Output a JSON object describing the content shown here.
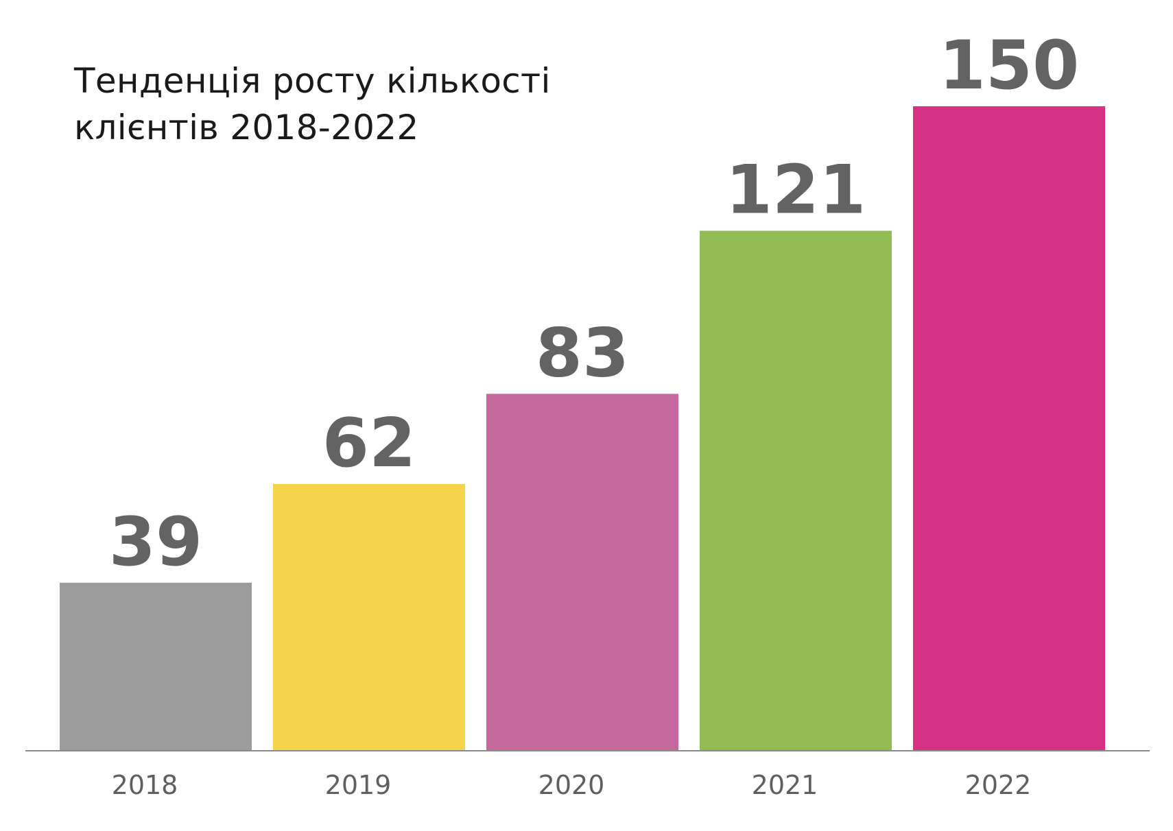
{
  "chart_data": {
    "type": "bar",
    "title": "Тенденція росту кількості клієнтів 2018-2022",
    "categories": [
      "2018",
      "2019",
      "2020",
      "2021",
      "2022"
    ],
    "values": [
      39,
      62,
      83,
      121,
      150
    ],
    "colors": [
      "#9c9c9c",
      "#f5d34a",
      "#c4679c",
      "#92bd55",
      "#d63184"
    ],
    "value_label_color": "#636363",
    "tick_label_color": "#5f5f5f",
    "axis_color": "#8a8a8a",
    "xlabel": "",
    "ylabel": "",
    "ylim": [
      0,
      150
    ],
    "grid": false,
    "legend": "none",
    "data_labels": true
  }
}
